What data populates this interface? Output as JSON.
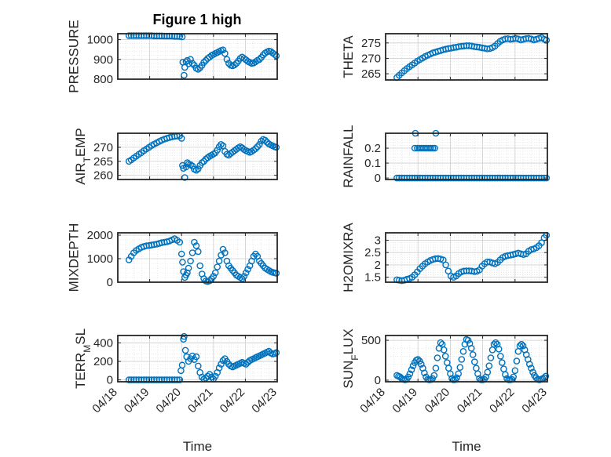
{
  "figure": {
    "title": "Figure 1 high",
    "x_axis_label": "Time",
    "x_tick_labels": [
      "04/18",
      "04/19",
      "04/20",
      "04/21",
      "04/22",
      "04/23"
    ]
  },
  "colors": {
    "marker": "#0072BD",
    "axes": "#262626",
    "grid": "#d9d9d9",
    "background": "#ffffff"
  },
  "chart_data": [
    {
      "type": "scatter",
      "title": "Figure 1 high",
      "ylabel_parts": [
        "PRESSURE"
      ],
      "ylim": [
        800,
        1030
      ],
      "yticks": [
        800,
        900,
        1000
      ],
      "ytick_labels": [
        "800",
        "900",
        "1000"
      ],
      "xlim": [
        0,
        5
      ],
      "xlabel": "",
      "x": [
        0.35,
        0.42,
        0.5,
        0.58,
        0.66,
        0.74,
        0.82,
        0.9,
        0.98,
        1.06,
        1.14,
        1.22,
        1.3,
        1.38,
        1.46,
        1.54,
        1.62,
        1.7,
        1.78,
        1.86,
        1.94,
        2.02,
        2.04,
        2.08,
        2.1,
        2.14,
        2.18,
        2.22,
        2.28,
        2.34,
        2.4,
        2.46,
        2.52,
        2.58,
        2.64,
        2.7,
        2.76,
        2.82,
        2.88,
        2.94,
        3.0,
        3.06,
        3.12,
        3.18,
        3.24,
        3.3,
        3.36,
        3.42,
        3.48,
        3.54,
        3.6,
        3.66,
        3.72,
        3.78,
        3.84,
        3.9,
        3.96,
        4.02,
        4.08,
        4.14,
        4.2,
        4.26,
        4.32,
        4.38,
        4.44,
        4.5,
        4.56,
        4.62,
        4.68,
        4.74,
        4.8,
        4.86,
        4.92,
        4.97
      ],
      "y": [
        1020,
        1020,
        1020,
        1020,
        1020,
        1020,
        1020,
        1020,
        1020,
        1020,
        1019,
        1019,
        1019,
        1019,
        1018,
        1018,
        1018,
        1018,
        1017,
        1017,
        1016,
        1014,
        886,
        820,
        860,
        888,
        895,
        878,
        900,
        880,
        870,
        855,
        850,
        858,
        870,
        885,
        895,
        905,
        912,
        920,
        925,
        930,
        935,
        940,
        945,
        948,
        930,
        900,
        880,
        870,
        868,
        872,
        880,
        892,
        905,
        912,
        905,
        898,
        890,
        885,
        880,
        882,
        888,
        895,
        900,
        910,
        922,
        932,
        938,
        942,
        940,
        932,
        925,
        918
      ]
    },
    {
      "type": "scatter",
      "ylabel_parts": [
        "THETA"
      ],
      "ylim": [
        263,
        278
      ],
      "yticks": [
        265,
        270,
        275
      ],
      "ytick_labels": [
        "265",
        "270",
        "275"
      ],
      "xlim": [
        0,
        5
      ],
      "xlabel": "",
      "x": [
        0.35,
        0.42,
        0.5,
        0.58,
        0.66,
        0.74,
        0.82,
        0.9,
        0.98,
        1.06,
        1.14,
        1.22,
        1.3,
        1.38,
        1.46,
        1.54,
        1.62,
        1.7,
        1.78,
        1.86,
        1.94,
        2.02,
        2.1,
        2.18,
        2.26,
        2.34,
        2.42,
        2.5,
        2.58,
        2.66,
        2.74,
        2.82,
        2.9,
        2.98,
        3.06,
        3.14,
        3.22,
        3.3,
        3.38,
        3.46,
        3.54,
        3.62,
        3.7,
        3.78,
        3.86,
        3.94,
        4.02,
        4.1,
        4.18,
        4.26,
        4.34,
        4.42,
        4.5,
        4.58,
        4.66,
        4.74,
        4.82,
        4.9,
        4.97
      ],
      "y": [
        263.8,
        264.5,
        265.3,
        266.0,
        266.7,
        267.3,
        267.9,
        268.5,
        269.1,
        269.6,
        270.1,
        270.6,
        271.0,
        271.4,
        271.8,
        272.0,
        272.3,
        272.5,
        272.8,
        273.0,
        273.2,
        273.3,
        273.5,
        273.6,
        273.8,
        273.9,
        274.0,
        274.1,
        274.1,
        274.0,
        273.8,
        273.7,
        273.6,
        273.4,
        273.3,
        273.1,
        273.2,
        273.5,
        274.0,
        274.8,
        275.5,
        276.0,
        276.3,
        276.4,
        276.2,
        276.3,
        276.5,
        276.3,
        276.0,
        276.2,
        276.4,
        276.5,
        276.3,
        276.0,
        276.2,
        276.5,
        276.7,
        276.2,
        275.9
      ]
    },
    {
      "type": "scatter",
      "ylabel_parts": [
        "AIR",
        "T",
        "EMP"
      ],
      "ylim": [
        258.5,
        275
      ],
      "yticks": [
        260,
        265,
        270
      ],
      "ytick_labels": [
        "260",
        "265",
        "270"
      ],
      "xlim": [
        0,
        5
      ],
      "xlabel": "",
      "x": [
        0.35,
        0.42,
        0.5,
        0.58,
        0.66,
        0.74,
        0.82,
        0.9,
        0.98,
        1.06,
        1.14,
        1.22,
        1.3,
        1.38,
        1.46,
        1.54,
        1.62,
        1.7,
        1.78,
        1.86,
        1.94,
        2.0,
        2.03,
        2.06,
        2.1,
        2.14,
        2.18,
        2.22,
        2.28,
        2.34,
        2.4,
        2.46,
        2.52,
        2.58,
        2.64,
        2.7,
        2.76,
        2.82,
        2.88,
        2.94,
        3.0,
        3.06,
        3.12,
        3.18,
        3.24,
        3.3,
        3.36,
        3.42,
        3.48,
        3.54,
        3.6,
        3.66,
        3.72,
        3.78,
        3.84,
        3.9,
        3.96,
        4.02,
        4.08,
        4.14,
        4.2,
        4.26,
        4.32,
        4.38,
        4.44,
        4.5,
        4.56,
        4.62,
        4.68,
        4.74,
        4.8,
        4.86,
        4.92,
        4.97
      ],
      "y": [
        265.0,
        265.5,
        266.2,
        266.8,
        267.5,
        268.1,
        268.8,
        269.4,
        270.0,
        270.6,
        271.1,
        271.6,
        272.1,
        272.5,
        272.9,
        273.2,
        273.5,
        273.7,
        273.9,
        274.0,
        274.1,
        273.2,
        263.5,
        262.5,
        259.2,
        263.0,
        264.5,
        264.0,
        263.8,
        263.3,
        262.2,
        261.8,
        262.3,
        263.5,
        264.5,
        265.0,
        265.8,
        266.3,
        266.8,
        267.2,
        267.6,
        268.0,
        269.0,
        270.2,
        271.0,
        270.5,
        268.5,
        267.5,
        267.2,
        267.8,
        268.3,
        268.8,
        269.3,
        269.8,
        270.2,
        269.8,
        269.2,
        268.8,
        268.5,
        268.2,
        268.5,
        269.0,
        269.5,
        270.2,
        271.0,
        272.2,
        272.8,
        272.5,
        271.8,
        271.2,
        270.8,
        270.5,
        270.2,
        270.0
      ]
    },
    {
      "type": "scatter",
      "ylabel_parts": [
        "RAINFALL"
      ],
      "ylim": [
        -0.01,
        0.3
      ],
      "yticks": [
        0,
        0.1,
        0.2
      ],
      "ytick_labels": [
        "0",
        "0.1",
        "0.2"
      ],
      "xlim": [
        0,
        5
      ],
      "xlabel": "",
      "x": [
        0.35,
        0.42,
        0.5,
        0.58,
        0.66,
        0.74,
        0.82,
        0.9,
        0.98,
        1.06,
        1.14,
        1.22,
        1.3,
        1.38,
        1.46,
        1.54,
        1.62,
        1.7,
        1.78,
        1.86,
        1.94,
        2.02,
        2.1,
        2.18,
        2.26,
        2.34,
        2.42,
        2.5,
        2.58,
        2.66,
        2.74,
        2.82,
        2.9,
        2.98,
        3.06,
        3.14,
        3.22,
        3.3,
        3.38,
        3.46,
        3.54,
        3.62,
        3.7,
        3.78,
        3.86,
        3.94,
        4.02,
        4.1,
        4.18,
        4.26,
        4.34,
        4.42,
        4.5,
        4.58,
        4.66,
        4.74,
        4.82,
        4.9,
        4.97,
        0.9,
        0.98,
        1.04,
        1.1,
        1.16,
        1.22,
        1.28,
        1.34,
        1.4,
        1.46,
        1.52,
        0.92,
        1.55
      ],
      "y": [
        0,
        0,
        0,
        0,
        0,
        0,
        0,
        0,
        0,
        0,
        0,
        0,
        0,
        0,
        0,
        0,
        0,
        0,
        0,
        0,
        0,
        0,
        0,
        0,
        0,
        0,
        0,
        0,
        0,
        0,
        0,
        0,
        0,
        0,
        0,
        0,
        0,
        0,
        0,
        0,
        0,
        0,
        0,
        0,
        0,
        0,
        0,
        0,
        0,
        0,
        0,
        0,
        0,
        0,
        0,
        0,
        0,
        0,
        0,
        0.2,
        0.2,
        0.2,
        0.2,
        0.2,
        0.2,
        0.2,
        0.2,
        0.2,
        0.2,
        0.2,
        0.3,
        0.3
      ]
    },
    {
      "type": "scatter",
      "ylabel_parts": [
        "MIXDEPTH"
      ],
      "ylim": [
        0,
        2100
      ],
      "yticks": [
        0,
        1000,
        2000
      ],
      "ytick_labels": [
        "0",
        "1000",
        "2000"
      ],
      "xlim": [
        0,
        5
      ],
      "xlabel": "",
      "x": [
        0.35,
        0.42,
        0.5,
        0.58,
        0.66,
        0.74,
        0.82,
        0.9,
        0.98,
        1.06,
        1.14,
        1.22,
        1.3,
        1.38,
        1.46,
        1.54,
        1.62,
        1.7,
        1.78,
        1.86,
        1.94,
        2.0,
        2.03,
        2.06,
        2.1,
        2.14,
        2.18,
        2.22,
        2.28,
        2.34,
        2.4,
        2.46,
        2.52,
        2.58,
        2.64,
        2.7,
        2.76,
        2.82,
        2.88,
        2.94,
        3.0,
        3.06,
        3.12,
        3.18,
        3.24,
        3.3,
        3.36,
        3.42,
        3.48,
        3.54,
        3.6,
        3.66,
        3.72,
        3.78,
        3.84,
        3.9,
        3.96,
        4.02,
        4.08,
        4.14,
        4.2,
        4.26,
        4.32,
        4.38,
        4.44,
        4.5,
        4.56,
        4.62,
        4.68,
        4.74,
        4.8,
        4.86,
        4.92,
        4.97
      ],
      "y": [
        950,
        1100,
        1250,
        1350,
        1420,
        1480,
        1520,
        1550,
        1560,
        1580,
        1600,
        1620,
        1650,
        1680,
        1700,
        1720,
        1750,
        1800,
        1850,
        1780,
        1700,
        1200,
        850,
        450,
        200,
        300,
        400,
        600,
        900,
        1250,
        1700,
        1550,
        1300,
        700,
        350,
        150,
        50,
        30,
        60,
        150,
        250,
        400,
        650,
        900,
        1150,
        1400,
        1250,
        900,
        700,
        600,
        500,
        400,
        300,
        250,
        200,
        150,
        250,
        400,
        550,
        700,
        900,
        1100,
        1200,
        1100,
        900,
        800,
        700,
        600,
        550,
        500,
        450,
        420,
        400,
        380
      ]
    },
    {
      "type": "scatter",
      "ylabel_parts": [
        "H2OMIXRA"
      ],
      "ylim": [
        1.3,
        3.3
      ],
      "yticks": [
        1.5,
        2,
        2.5,
        3
      ],
      "ytick_labels": [
        "1.5",
        "2",
        "2.5",
        "3"
      ],
      "xlim": [
        0,
        5
      ],
      "xlabel": "",
      "x": [
        0.35,
        0.42,
        0.5,
        0.58,
        0.66,
        0.74,
        0.82,
        0.9,
        0.98,
        1.06,
        1.14,
        1.22,
        1.3,
        1.38,
        1.46,
        1.54,
        1.62,
        1.7,
        1.78,
        1.86,
        1.94,
        2.02,
        2.1,
        2.18,
        2.26,
        2.34,
        2.42,
        2.5,
        2.58,
        2.66,
        2.74,
        2.82,
        2.9,
        2.98,
        3.06,
        3.14,
        3.22,
        3.3,
        3.38,
        3.46,
        3.54,
        3.62,
        3.7,
        3.78,
        3.86,
        3.94,
        4.02,
        4.1,
        4.18,
        4.26,
        4.34,
        4.42,
        4.5,
        4.58,
        4.66,
        4.74,
        4.82,
        4.9,
        4.97
      ],
      "y": [
        1.4,
        1.38,
        1.36,
        1.38,
        1.42,
        1.45,
        1.5,
        1.6,
        1.72,
        1.85,
        1.95,
        2.05,
        2.12,
        2.18,
        2.22,
        2.25,
        2.26,
        2.24,
        2.2,
        2.0,
        1.75,
        1.55,
        1.5,
        1.55,
        1.65,
        1.72,
        1.75,
        1.76,
        1.76,
        1.75,
        1.73,
        1.74,
        1.8,
        1.95,
        2.05,
        2.12,
        2.12,
        2.08,
        2.05,
        2.1,
        2.2,
        2.3,
        2.35,
        2.38,
        2.4,
        2.42,
        2.45,
        2.48,
        2.45,
        2.42,
        2.45,
        2.55,
        2.62,
        2.65,
        2.7,
        2.78,
        2.9,
        3.1,
        3.2
      ]
    },
    {
      "type": "scatter",
      "ylabel_parts": [
        "TERR",
        "M",
        "SL"
      ],
      "ylim": [
        -20,
        480
      ],
      "yticks": [
        0,
        200,
        400
      ],
      "ytick_labels": [
        "0",
        "200",
        "400"
      ],
      "xlim": [
        0,
        5
      ],
      "xlabel": "Time",
      "xtick_labels": [
        "04/18",
        "04/19",
        "04/20",
        "04/21",
        "04/22",
        "04/23"
      ],
      "x": [
        0.35,
        0.42,
        0.5,
        0.58,
        0.66,
        0.74,
        0.82,
        0.9,
        0.98,
        1.06,
        1.14,
        1.22,
        1.3,
        1.38,
        1.46,
        1.54,
        1.62,
        1.7,
        1.78,
        1.86,
        1.94,
        1.98,
        2.02,
        2.06,
        2.08,
        2.12,
        2.16,
        2.22,
        2.28,
        2.34,
        2.4,
        2.46,
        2.52,
        2.58,
        2.64,
        2.7,
        2.76,
        2.82,
        2.88,
        2.94,
        3.0,
        3.06,
        3.12,
        3.18,
        3.24,
        3.3,
        3.36,
        3.42,
        3.48,
        3.54,
        3.6,
        3.66,
        3.72,
        3.78,
        3.84,
        3.9,
        3.96,
        4.02,
        4.08,
        4.14,
        4.2,
        4.26,
        4.32,
        4.38,
        4.44,
        4.5,
        4.56,
        4.62,
        4.68,
        4.74,
        4.8,
        4.86,
        4.92,
        4.97
      ],
      "y": [
        0,
        0,
        0,
        0,
        0,
        0,
        0,
        0,
        0,
        0,
        0,
        0,
        0,
        0,
        0,
        0,
        0,
        0,
        0,
        0,
        0,
        100,
        160,
        440,
        470,
        320,
        250,
        200,
        230,
        260,
        220,
        250,
        150,
        80,
        30,
        10,
        20,
        40,
        60,
        30,
        10,
        40,
        80,
        130,
        170,
        210,
        230,
        200,
        170,
        150,
        140,
        150,
        160,
        170,
        180,
        190,
        180,
        170,
        190,
        210,
        220,
        230,
        240,
        250,
        260,
        270,
        280,
        290,
        300,
        310,
        290,
        280,
        285,
        295
      ]
    },
    {
      "type": "scatter",
      "ylabel_parts": [
        "SUN",
        "F",
        "LUX"
      ],
      "ylim": [
        -20,
        560
      ],
      "yticks": [
        0,
        500
      ],
      "ytick_labels": [
        "0",
        "500"
      ],
      "xlim": [
        0,
        5
      ],
      "xlabel": "Time",
      "xtick_labels": [
        "04/18",
        "04/19",
        "04/20",
        "04/21",
        "04/22",
        "04/23"
      ],
      "x": [
        0.35,
        0.4,
        0.45,
        0.5,
        0.55,
        0.6,
        0.65,
        0.7,
        0.75,
        0.8,
        0.85,
        0.9,
        0.95,
        1.0,
        1.05,
        1.1,
        1.15,
        1.2,
        1.25,
        1.3,
        1.35,
        1.4,
        1.45,
        1.5,
        1.55,
        1.6,
        1.65,
        1.7,
        1.75,
        1.8,
        1.85,
        1.9,
        1.95,
        2.0,
        2.05,
        2.1,
        2.15,
        2.2,
        2.25,
        2.3,
        2.35,
        2.4,
        2.45,
        2.5,
        2.55,
        2.6,
        2.65,
        2.7,
        2.75,
        2.8,
        2.85,
        2.9,
        2.95,
        3.0,
        3.05,
        3.1,
        3.15,
        3.2,
        3.25,
        3.3,
        3.35,
        3.4,
        3.45,
        3.5,
        3.55,
        3.6,
        3.65,
        3.7,
        3.75,
        3.8,
        3.85,
        3.9,
        3.95,
        4.0,
        4.05,
        4.1,
        4.15,
        4.2,
        4.25,
        4.3,
        4.35,
        4.4,
        4.45,
        4.5,
        4.55,
        4.6,
        4.65,
        4.7,
        4.75,
        4.8,
        4.85,
        4.9,
        4.95
      ],
      "y": [
        60,
        50,
        40,
        20,
        10,
        5,
        10,
        40,
        80,
        130,
        180,
        220,
        250,
        260,
        240,
        200,
        150,
        90,
        40,
        10,
        5,
        8,
        20,
        60,
        150,
        280,
        400,
        470,
        450,
        380,
        300,
        220,
        150,
        80,
        20,
        5,
        8,
        30,
        80,
        160,
        260,
        360,
        450,
        510,
        500,
        460,
        400,
        320,
        230,
        150,
        80,
        20,
        5,
        5,
        10,
        40,
        100,
        180,
        280,
        380,
        450,
        470,
        450,
        390,
        300,
        220,
        140,
        70,
        20,
        5,
        5,
        10,
        40,
        120,
        240,
        360,
        430,
        450,
        430,
        380,
        320,
        260,
        200,
        150,
        100,
        60,
        30,
        10,
        5,
        10,
        20,
        30,
        50
      ]
    }
  ]
}
